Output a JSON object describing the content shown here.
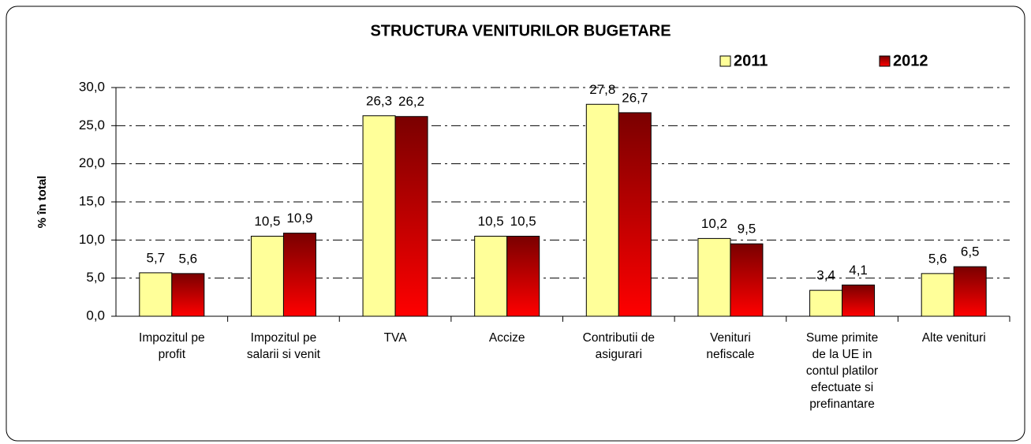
{
  "chart_data": {
    "type": "bar",
    "title": "STRUCTURA VENITURILOR BUGETARE",
    "y_label": "% în total",
    "categories": [
      "Impozitul pe profit",
      "Impozitul pe salarii si venit",
      "TVA",
      "Accize",
      "Contributii de asigurari",
      "Venituri nefiscale",
      "Sume primite de la UE in contul platilor efectuate si prefinantare",
      "Alte venituri"
    ],
    "series": [
      {
        "name": "2011",
        "color": "#ffff99",
        "values": [
          5.7,
          10.5,
          26.3,
          10.5,
          27.8,
          10.2,
          3.4,
          5.6
        ],
        "value_labels": [
          "5,7",
          "10,5",
          "26,3",
          "10,5",
          "27,8",
          "10,2",
          "3,4",
          "5,6"
        ]
      },
      {
        "name": "2012",
        "color": "#ff0000",
        "values": [
          5.6,
          10.9,
          26.2,
          10.5,
          26.7,
          9.5,
          4.1,
          6.5
        ],
        "value_labels": [
          "5,6",
          "10,9",
          "26,2",
          "10,5",
          "26,7",
          "9,5",
          "4,1",
          "6,5"
        ]
      }
    ],
    "ylim": [
      0,
      30
    ],
    "yticks": [
      {
        "value": 0,
        "label": "0,0"
      },
      {
        "value": 5,
        "label": "5,0"
      },
      {
        "value": 10,
        "label": "10,0"
      },
      {
        "value": 15,
        "label": "15,0"
      },
      {
        "value": 20,
        "label": "20,0"
      },
      {
        "value": 25,
        "label": "25,0"
      },
      {
        "value": 30,
        "label": "30,0"
      }
    ],
    "grid": true
  }
}
